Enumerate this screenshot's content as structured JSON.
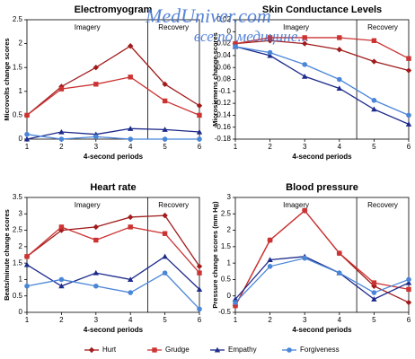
{
  "watermark": {
    "title": "MedUniver.com",
    "subtitle": "все по медицине..."
  },
  "chart_data": [
    {
      "type": "line",
      "title": "Electromyogram",
      "x_label": "4-second periods",
      "y_label": "Microvolts change scores",
      "x": [
        1,
        2,
        3,
        4,
        5,
        6
      ],
      "xlim": [
        1,
        6
      ],
      "xticks": [
        1,
        2,
        3,
        4,
        5,
        6
      ],
      "ylim": [
        0,
        2.5
      ],
      "yticks": [
        0,
        0.5,
        1,
        1.5,
        2,
        2.5
      ],
      "divider_x": 4.5,
      "regions": [
        "Imagery",
        "Recovery"
      ],
      "series": [
        {
          "name": "Hurt",
          "color": "#a01c1c",
          "marker": "diamond",
          "values": [
            0.5,
            1.1,
            1.5,
            1.95,
            1.15,
            0.7
          ]
        },
        {
          "name": "Grudge",
          "color": "#cc3333",
          "marker": "square",
          "values": [
            0.5,
            1.05,
            1.15,
            1.3,
            0.8,
            0.5
          ]
        },
        {
          "name": "Empathy",
          "color": "#1c2a8a",
          "marker": "triangle",
          "values": [
            0,
            0.15,
            0.1,
            0.22,
            0.2,
            0.15
          ]
        },
        {
          "name": "Forgiveness",
          "color": "#4a86d8",
          "marker": "circle",
          "values": [
            0.1,
            0,
            0.05,
            0,
            0,
            0
          ]
        }
      ]
    },
    {
      "type": "line",
      "title": "Skin Conductance Levels",
      "x_label": "4-second periods",
      "y_label": "Microsiemens change scores",
      "x": [
        1,
        2,
        3,
        4,
        5,
        6
      ],
      "xlim": [
        1,
        6
      ],
      "xticks": [
        1,
        2,
        3,
        4,
        5,
        6
      ],
      "ylim": [
        -0.18,
        0.02
      ],
      "yticks": [
        -0.18,
        -0.16,
        -0.14,
        -0.12,
        -0.1,
        -0.08,
        -0.06,
        -0.04,
        -0.02,
        0,
        0.02
      ],
      "divider_x": 4.5,
      "regions": [
        "Imagery",
        "Recovery"
      ],
      "series": [
        {
          "name": "Hurt",
          "color": "#a01c1c",
          "marker": "diamond",
          "values": [
            -0.02,
            -0.015,
            -0.02,
            -0.03,
            -0.05,
            -0.065
          ]
        },
        {
          "name": "Grudge",
          "color": "#cc3333",
          "marker": "square",
          "values": [
            -0.02,
            -0.01,
            -0.01,
            -0.01,
            -0.015,
            -0.045
          ]
        },
        {
          "name": "Empathy",
          "color": "#1c2a8a",
          "marker": "triangle",
          "values": [
            -0.025,
            -0.04,
            -0.075,
            -0.095,
            -0.13,
            -0.155
          ]
        },
        {
          "name": "Forgiveness",
          "color": "#4a86d8",
          "marker": "circle",
          "values": [
            -0.025,
            -0.035,
            -0.055,
            -0.08,
            -0.115,
            -0.14
          ]
        }
      ]
    },
    {
      "type": "line",
      "title": "Heart rate",
      "x_label": "4-second periods",
      "y_label": "Beats/minute change scores",
      "x": [
        1,
        2,
        3,
        4,
        5,
        6
      ],
      "xlim": [
        1,
        6
      ],
      "xticks": [
        1,
        2,
        3,
        4,
        5,
        6
      ],
      "ylim": [
        0,
        3.5
      ],
      "yticks": [
        0,
        0.5,
        1,
        1.5,
        2,
        2.5,
        3,
        3.5
      ],
      "divider_x": 4.5,
      "regions": [
        "Imagery",
        "Recovery"
      ],
      "series": [
        {
          "name": "Hurt",
          "color": "#a01c1c",
          "marker": "diamond",
          "values": [
            1.7,
            2.5,
            2.6,
            2.9,
            2.95,
            1.4
          ]
        },
        {
          "name": "Grudge",
          "color": "#cc3333",
          "marker": "square",
          "values": [
            1.7,
            2.6,
            2.2,
            2.6,
            2.4,
            1.2
          ]
        },
        {
          "name": "Empathy",
          "color": "#1c2a8a",
          "marker": "triangle",
          "values": [
            1.45,
            0.8,
            1.2,
            1.0,
            1.7,
            0.7
          ]
        },
        {
          "name": "Forgiveness",
          "color": "#4a86d8",
          "marker": "circle",
          "values": [
            0.8,
            1.0,
            0.8,
            0.6,
            1.2,
            0.1
          ]
        }
      ]
    },
    {
      "type": "line",
      "title": "Blood pressure",
      "x_label": "4-second periods",
      "y_label": "Pressure change scores (mm Hg)",
      "x": [
        1,
        2,
        3,
        4,
        5,
        6
      ],
      "xlim": [
        1,
        6
      ],
      "xticks": [
        1,
        2,
        3,
        4,
        5,
        6
      ],
      "ylim": [
        -0.5,
        3
      ],
      "yticks": [
        -0.5,
        0,
        0.5,
        1,
        1.5,
        2,
        2.5,
        3
      ],
      "divider_x": 4.5,
      "regions": [
        "Imagery",
        "Recovery"
      ],
      "series": [
        {
          "name": "Hurt",
          "color": "#a01c1c",
          "marker": "diamond",
          "values": [
            -0.3,
            1.7,
            2.6,
            1.3,
            0.3,
            -0.2
          ]
        },
        {
          "name": "Grudge",
          "color": "#cc3333",
          "marker": "square",
          "values": [
            -0.3,
            1.7,
            2.6,
            1.3,
            0.4,
            0.2
          ]
        },
        {
          "name": "Empathy",
          "color": "#1c2a8a",
          "marker": "triangle",
          "values": [
            -0.1,
            1.1,
            1.2,
            0.7,
            -0.1,
            0.4
          ]
        },
        {
          "name": "Forgiveness",
          "color": "#4a86d8",
          "marker": "circle",
          "values": [
            -0.2,
            0.9,
            1.15,
            0.7,
            0.1,
            0.5
          ]
        }
      ]
    }
  ]
}
